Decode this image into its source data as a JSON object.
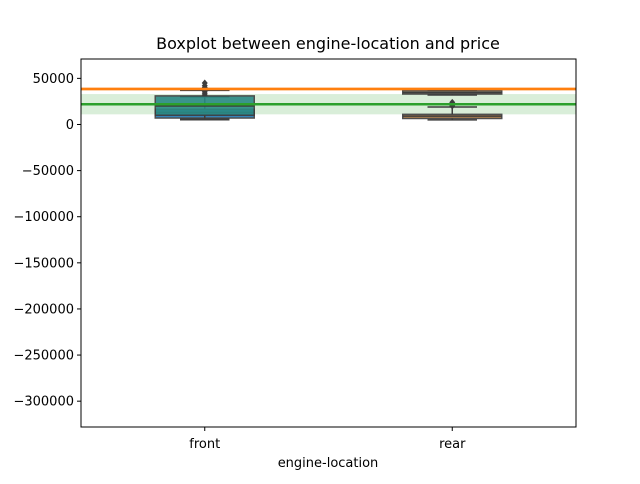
{
  "chart_data": {
    "type": "box",
    "title": "Boxplot between engine-location and price",
    "xlabel": "engine-location",
    "ylabel": "",
    "categories": [
      "front",
      "rear"
    ],
    "ylim": [
      -328000,
      71000
    ],
    "yticks": [
      50000,
      0,
      -50000,
      -100000,
      -150000,
      -200000,
      -250000,
      -300000
    ],
    "ytick_labels": [
      "50000",
      "0",
      "−50000",
      "−100000",
      "−150000",
      "−200000",
      "−250000",
      "−300000"
    ],
    "boxes": [
      {
        "category": "front",
        "color": "#1f77b4",
        "edge": "#3d3d3d",
        "whisker_low": 5100,
        "q1": 7000,
        "median": 13000,
        "q3": 16500,
        "whisker_high": 30000,
        "fliers": [
          32000,
          34000,
          36000,
          38000,
          40000,
          42000,
          45000
        ]
      },
      {
        "category": "front",
        "color": "#2a8a84",
        "edge": "#3d3d3d",
        "whisker_low": 6000,
        "q1": 10000,
        "median": 20000,
        "q3": 31000,
        "whisker_high": 37000,
        "fliers": []
      },
      {
        "category": "rear",
        "color": "#b07a3e",
        "edge": "#3d3d3d",
        "whisker_low": 5000,
        "q1": 6500,
        "median": 9000,
        "q3": 11000,
        "whisker_high": 19000,
        "fliers": [
          20000,
          22000,
          24000
        ]
      },
      {
        "category": "rear",
        "color": "#8c7a50",
        "edge": "#3d3d3d",
        "whisker_low": 32000,
        "q1": 33000,
        "median": 34500,
        "q3": 36500,
        "whisker_high": 37000,
        "fliers": []
      }
    ],
    "reference_lines": [
      {
        "y": 38500,
        "color": "#ff7f0e",
        "band": [
          36500,
          40500
        ]
      },
      {
        "y": 22000,
        "color": "#2ca02c",
        "band": [
          11000,
          33000
        ]
      }
    ]
  }
}
